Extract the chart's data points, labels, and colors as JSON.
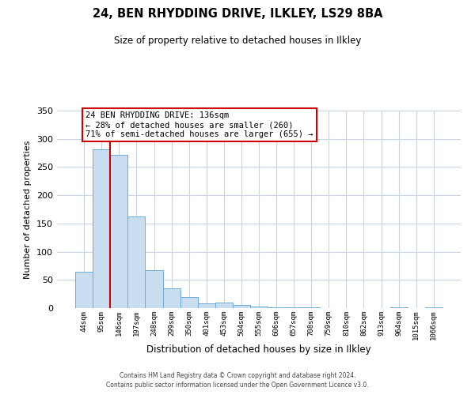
{
  "title": "24, BEN RHYDDING DRIVE, ILKLEY, LS29 8BA",
  "subtitle": "Size of property relative to detached houses in Ilkley",
  "xlabel": "Distribution of detached houses by size in Ilkley",
  "ylabel": "Number of detached properties",
  "bar_labels": [
    "44sqm",
    "95sqm",
    "146sqm",
    "197sqm",
    "248sqm",
    "299sqm",
    "350sqm",
    "401sqm",
    "453sqm",
    "504sqm",
    "555sqm",
    "606sqm",
    "657sqm",
    "708sqm",
    "759sqm",
    "810sqm",
    "862sqm",
    "913sqm",
    "964sqm",
    "1015sqm",
    "1066sqm"
  ],
  "bar_heights": [
    65,
    282,
    272,
    163,
    67,
    35,
    20,
    9,
    10,
    5,
    3,
    1,
    2,
    1,
    0,
    0,
    0,
    0,
    1,
    0,
    1
  ],
  "bar_color": "#c8ddf0",
  "bar_edge_color": "#6aaed6",
  "background_color": "#ffffff",
  "grid_color": "#c8d4e0",
  "annotation_title": "24 BEN RHYDDING DRIVE: 136sqm",
  "annotation_line1": "← 28% of detached houses are smaller (260)",
  "annotation_line2": "71% of semi-detached houses are larger (655) →",
  "annotation_box_edge": "#cc0000",
  "red_line_color": "#cc0000",
  "ylim": [
    0,
    350
  ],
  "yticks": [
    0,
    50,
    100,
    150,
    200,
    250,
    300,
    350
  ],
  "footer1": "Contains HM Land Registry data © Crown copyright and database right 2024.",
  "footer2": "Contains public sector information licensed under the Open Government Licence v3.0."
}
